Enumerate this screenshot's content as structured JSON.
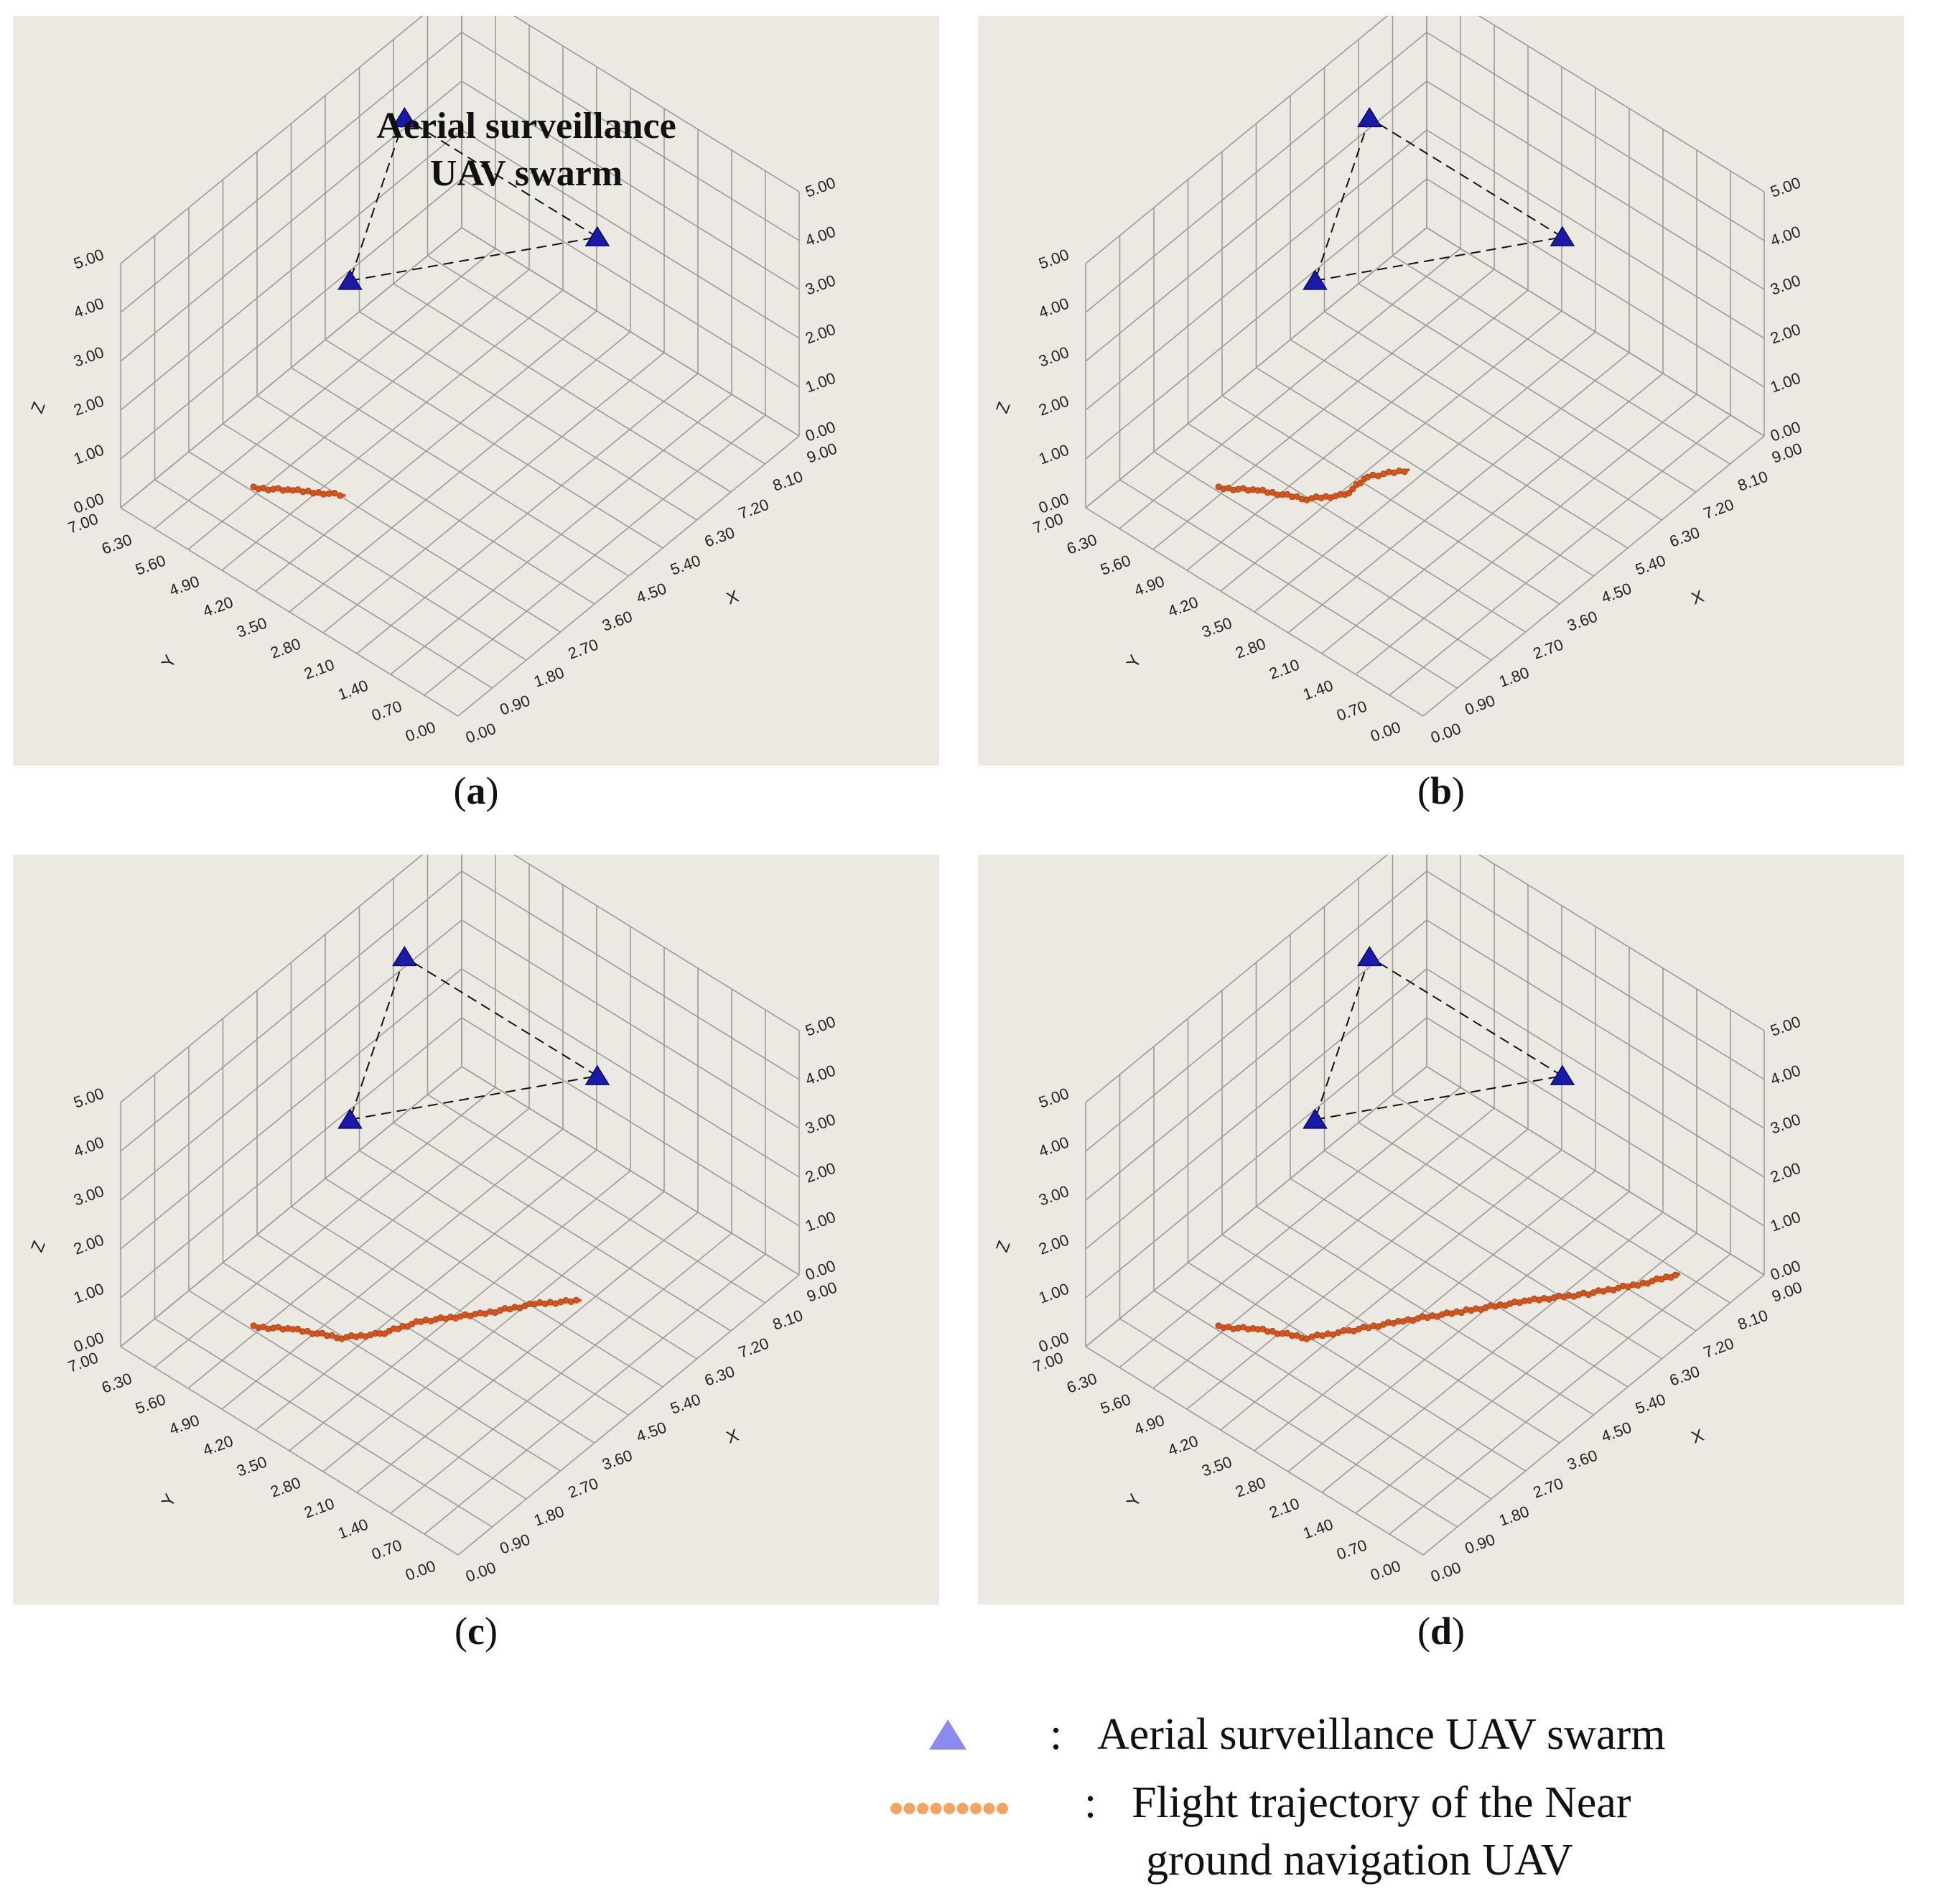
{
  "legend": {
    "swarm_label": "Aerial surveillance UAV swarm",
    "swarm_colon": ":",
    "trajectory_label_line1": "Flight trajectory of the Near",
    "trajectory_label_line2": "ground navigation UAV",
    "trajectory_colon": ":",
    "swarm_marker_color": "#8a8aef",
    "trajectory_marker_color": "#f4a460"
  },
  "colors": {
    "plot_background": "#ece9e3",
    "grid": "#9a9a9a",
    "uav_marker": "#1a1aa8",
    "trajectory": "#d2561d"
  },
  "chart_data": [
    {
      "panel": "a",
      "caption_letter": "a",
      "caption_open": "(",
      "caption_close": ")",
      "type": "scatter3d",
      "annotation_line1": "Aerial surveillance",
      "annotation_line2": "UAV swarm",
      "xlabel": "X",
      "ylabel": "Y",
      "zlabel": "Z",
      "xticks": [
        "0.00",
        "0.90",
        "1.80",
        "2.70",
        "3.60",
        "4.50",
        "5.40",
        "6.30",
        "7.20",
        "8.10",
        "9.00"
      ],
      "yticks": [
        "0.00",
        "0.70",
        "1.40",
        "2.10",
        "2.80",
        "3.50",
        "4.20",
        "4.90",
        "5.60",
        "6.30",
        "7.00"
      ],
      "zticks": [
        "0.00",
        "1.00",
        "2.00",
        "3.00",
        "4.00",
        "5.00"
      ],
      "xlim": [
        0,
        9
      ],
      "ylim": [
        0,
        7
      ],
      "zlim": [
        0,
        5
      ],
      "swarm": [
        {
          "x": 3.0,
          "y": 4.6,
          "z": 4.2
        },
        {
          "x": 6.6,
          "y": 2.3,
          "z": 4.2
        },
        {
          "x": 6.6,
          "y": 6.3,
          "z": 4.2
        }
      ],
      "trajectory": [
        {
          "x": 1.6,
          "y": 5.5,
          "z": 0.3
        },
        {
          "x": 2.0,
          "y": 5.0,
          "z": 0.3
        },
        {
          "x": 2.3,
          "y": 4.6,
          "z": 0.3
        },
        {
          "x": 2.5,
          "y": 4.3,
          "z": 0.3
        }
      ]
    },
    {
      "panel": "b",
      "caption_letter": "b",
      "caption_open": "(",
      "caption_close": ")",
      "type": "scatter3d",
      "xlabel": "X",
      "ylabel": "Y",
      "zlabel": "Z",
      "xticks": [
        "0.00",
        "0.90",
        "1.80",
        "2.70",
        "3.60",
        "4.50",
        "5.40",
        "6.30",
        "7.20",
        "8.10",
        "9.00"
      ],
      "yticks": [
        "0.00",
        "0.70",
        "1.40",
        "2.10",
        "2.80",
        "3.50",
        "4.20",
        "4.90",
        "5.60",
        "6.30",
        "7.00"
      ],
      "zticks": [
        "0.00",
        "1.00",
        "2.00",
        "3.00",
        "4.00",
        "5.00"
      ],
      "xlim": [
        0,
        9
      ],
      "ylim": [
        0,
        7
      ],
      "zlim": [
        0,
        5
      ],
      "swarm": [
        {
          "x": 3.0,
          "y": 4.6,
          "z": 4.2
        },
        {
          "x": 6.6,
          "y": 2.3,
          "z": 4.2
        },
        {
          "x": 6.6,
          "y": 6.3,
          "z": 4.2
        }
      ],
      "trajectory": [
        {
          "x": 1.6,
          "y": 5.5,
          "z": 0.3
        },
        {
          "x": 2.0,
          "y": 5.0,
          "z": 0.3
        },
        {
          "x": 2.4,
          "y": 4.3,
          "z": 0.3
        },
        {
          "x": 2.9,
          "y": 3.9,
          "z": 0.3
        },
        {
          "x": 3.5,
          "y": 3.9,
          "z": 0.3
        },
        {
          "x": 4.1,
          "y": 3.5,
          "z": 0.3
        }
      ]
    },
    {
      "panel": "c",
      "caption_letter": "c",
      "caption_open": "(",
      "caption_close": ")",
      "type": "scatter3d",
      "xlabel": "X",
      "ylabel": "Y",
      "zlabel": "Z",
      "xticks": [
        "0.00",
        "0.90",
        "1.80",
        "2.70",
        "3.60",
        "4.50",
        "5.40",
        "6.30",
        "7.20",
        "8.10",
        "9.00"
      ],
      "yticks": [
        "0.00",
        "0.70",
        "1.40",
        "2.10",
        "2.80",
        "3.50",
        "4.20",
        "4.90",
        "5.60",
        "6.30",
        "7.00"
      ],
      "zticks": [
        "0.00",
        "1.00",
        "2.00",
        "3.00",
        "4.00",
        "5.00"
      ],
      "xlim": [
        0,
        9
      ],
      "ylim": [
        0,
        7
      ],
      "zlim": [
        0,
        5
      ],
      "swarm": [
        {
          "x": 3.0,
          "y": 4.6,
          "z": 4.2
        },
        {
          "x": 6.6,
          "y": 2.3,
          "z": 4.2
        },
        {
          "x": 6.6,
          "y": 6.3,
          "z": 4.2
        }
      ],
      "trajectory": [
        {
          "x": 1.6,
          "y": 5.5,
          "z": 0.3
        },
        {
          "x": 2.0,
          "y": 5.0,
          "z": 0.3
        },
        {
          "x": 2.4,
          "y": 4.3,
          "z": 0.3
        },
        {
          "x": 2.9,
          "y": 3.9,
          "z": 0.3
        },
        {
          "x": 3.6,
          "y": 3.6,
          "z": 0.3
        },
        {
          "x": 4.4,
          "y": 3.0,
          "z": 0.3
        },
        {
          "x": 5.2,
          "y": 2.5,
          "z": 0.3
        },
        {
          "x": 5.8,
          "y": 2.0,
          "z": 0.3
        }
      ]
    },
    {
      "panel": "d",
      "caption_letter": "d",
      "caption_open": "(",
      "caption_close": ")",
      "type": "scatter3d",
      "xlabel": "X",
      "ylabel": "Y",
      "zlabel": "Z",
      "xticks": [
        "0.00",
        "0.90",
        "1.80",
        "2.70",
        "3.60",
        "4.50",
        "5.40",
        "6.30",
        "7.20",
        "8.10",
        "9.00"
      ],
      "yticks": [
        "0.00",
        "0.70",
        "1.40",
        "2.10",
        "2.80",
        "3.50",
        "4.20",
        "4.90",
        "5.60",
        "6.30",
        "7.00"
      ],
      "zticks": [
        "0.00",
        "1.00",
        "2.00",
        "3.00",
        "4.00",
        "5.00"
      ],
      "xlim": [
        0,
        9
      ],
      "ylim": [
        0,
        7
      ],
      "zlim": [
        0,
        5
      ],
      "swarm": [
        {
          "x": 3.0,
          "y": 4.6,
          "z": 4.2
        },
        {
          "x": 6.6,
          "y": 2.3,
          "z": 4.2
        },
        {
          "x": 6.6,
          "y": 6.3,
          "z": 4.2
        }
      ],
      "trajectory": [
        {
          "x": 1.6,
          "y": 5.5,
          "z": 0.3
        },
        {
          "x": 2.0,
          "y": 5.0,
          "z": 0.3
        },
        {
          "x": 2.4,
          "y": 4.3,
          "z": 0.3
        },
        {
          "x": 3.0,
          "y": 3.9,
          "z": 0.3
        },
        {
          "x": 3.8,
          "y": 3.4,
          "z": 0.3
        },
        {
          "x": 4.7,
          "y": 2.8,
          "z": 0.3
        },
        {
          "x": 5.6,
          "y": 2.2,
          "z": 0.3
        },
        {
          "x": 6.4,
          "y": 1.6,
          "z": 0.3
        },
        {
          "x": 7.2,
          "y": 1.1,
          "z": 0.3
        },
        {
          "x": 7.8,
          "y": 0.8,
          "z": 0.3
        }
      ]
    }
  ]
}
